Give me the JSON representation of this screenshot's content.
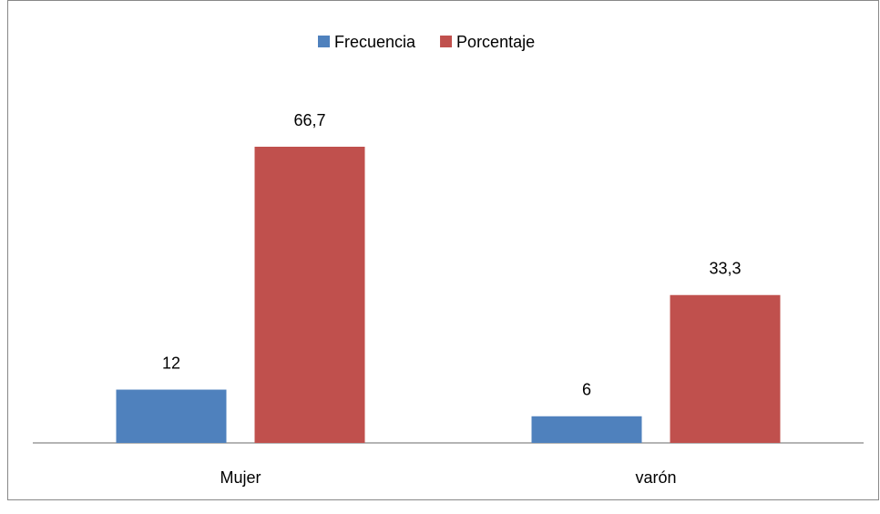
{
  "chart_data": {
    "type": "bar",
    "categories": [
      "Mujer",
      "varón"
    ],
    "series": [
      {
        "name": "Frecuencia",
        "color": "#4f81bd",
        "values": [
          12,
          6
        ]
      },
      {
        "name": "Porcentaje",
        "color": "#c0504d",
        "values": [
          66.7,
          33.3
        ],
        "value_labels": [
          "66,7",
          "33,3"
        ]
      }
    ],
    "legend": "top"
  }
}
